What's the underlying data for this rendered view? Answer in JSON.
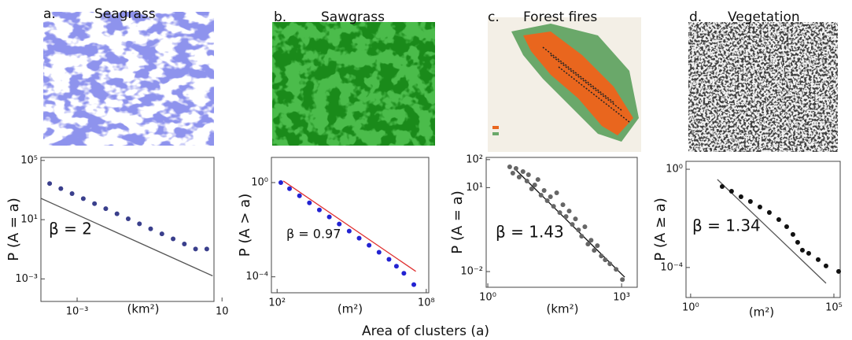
{
  "x_label": "Area of clusters (a)",
  "chart_data": [
    {
      "type": "scatter",
      "letter": "a.",
      "title": "Seagrass",
      "ylabel": "P (A = a)",
      "xlabel": "(km²)",
      "annotation": "β = 2",
      "log_scale": true,
      "color": "#3a3f8c",
      "fit_color": "#555555",
      "xlim": [
        0.0001,
        6
      ],
      "ylim": [
        3e-05,
        160000
      ],
      "xticks": [
        {
          "value": 0.001,
          "label": "10⁻³"
        },
        10
      ],
      "yticks": [
        {
          "value": 100000,
          "label": "10⁵"
        },
        {
          "value": 10,
          "label": "10¹"
        },
        {
          "value": 0.001,
          "label": "10⁻³"
        }
      ],
      "x": [
        0.000174,
        0.000355,
        0.000724,
        0.00148,
        0.00302,
        0.00617,
        0.0126,
        0.0257,
        0.0525,
        0.107,
        0.219,
        0.447,
        0.912,
        1.86,
        3.8
      ],
      "values": [
        2754,
        1259,
        575,
        263,
        120,
        55,
        25.1,
        11.5,
        5.25,
        2.4,
        1.1,
        0.501,
        0.229,
        0.105,
        0.105
      ],
      "fit": {
        "x": [
          0.0001,
          5.5
        ],
        "y": [
          275,
          0.0016
        ]
      }
    },
    {
      "type": "scatter",
      "letter": "b.",
      "title": "Sawgrass",
      "ylabel": "P (A > a)",
      "xlabel": "(m²)",
      "annotation": "β = 0.97",
      "log_scale": true,
      "color": "#2323d2",
      "fit_color": "#e03030",
      "xlim": [
        59,
        126000000
      ],
      "ylim": [
        2.1e-05,
        11.7
      ],
      "xticks": [
        {
          "value": 100,
          "label": "10²"
        },
        {
          "value": 100000000,
          "label": "10⁸"
        }
      ],
      "yticks": [
        {
          "value": 1,
          "label": "10⁰"
        },
        {
          "value": 0.0001,
          "label": "10⁻⁴"
        }
      ],
      "x": [
        141,
        316,
        794,
        1995,
        5012,
        12589,
        31623,
        79433,
        199526,
        501187,
        1258925,
        3162278,
        6309573,
        12589254,
        31622777
      ],
      "values": [
        1,
        0.55,
        0.275,
        0.138,
        0.0692,
        0.0347,
        0.0174,
        0.0087,
        0.00437,
        0.00219,
        0.0011,
        0.00055,
        0.000282,
        0.000141,
        4.68e-05
      ],
      "fit": {
        "x": [
          178,
          38000000
        ],
        "y": [
          1.17,
          0.00017
        ]
      }
    },
    {
      "type": "scatter",
      "letter": "c.",
      "title": "Forest fires",
      "ylabel": "P (A = a)",
      "xlabel": "(km²)",
      "annotation": "β = 1.43",
      "log_scale": true,
      "color": "#666666",
      "fit_color": "#111111",
      "xlim": [
        0.92,
        2239
      ],
      "ylim": [
        0.00275,
        120
      ],
      "xticks": [
        {
          "value": 1,
          "label": "10⁰"
        },
        {
          "value": 1000,
          "label": "10³"
        }
      ],
      "yticks": [
        {
          "value": 100,
          "label": "10²"
        },
        {
          "value": 10,
          "label": "10¹"
        },
        {
          "value": 0.01,
          "label": "10⁻²"
        }
      ],
      "x": [
        3.1,
        3.64,
        4.29,
        5.04,
        6.15,
        7.53,
        8.17,
        9.6,
        11.3,
        13.3,
        15.6,
        18.3,
        21.5,
        25.4,
        29.8,
        35,
        41.1,
        48.3,
        56.8,
        66.8,
        78.5,
        92.3,
        108,
        127,
        150,
        176,
        207,
        243,
        286,
        350,
        429,
        546,
        753,
        1042
      ],
      "values": [
        55.2,
        32.9,
        48.5,
        23.8,
        37.4,
        17.2,
        28.8,
        8.98,
        12.4,
        19.5,
        5.35,
        7.89,
        3.4,
        4.7,
        2.15,
        6.49,
        1.28,
        2.45,
        0.927,
        1.46,
        0.485,
        0.764,
        0.308,
        0.183,
        0.399,
        0.0957,
        0.132,
        0.057,
        0.0841,
        0.0362,
        0.0262,
        0.0189,
        0.012,
        0.00518
      ],
      "fit": {
        "x": [
          4.11,
          1175
        ],
        "y": [
          45.4,
          0.0063
        ]
      }
    },
    {
      "type": "scatter",
      "letter": "d.",
      "title": "Vegetation",
      "ylabel": "P (A ≥ a)",
      "xlabel": "(m²)",
      "annotation": "β = 1.34",
      "log_scale": true,
      "color": "#111111",
      "fit_color": "#555555",
      "xlim": [
        0.69,
        166000
      ],
      "ylim": [
        6e-06,
        2.1
      ],
      "xticks": [
        {
          "value": 1,
          "label": "10⁰"
        },
        {
          "value": 100000,
          "label": "10⁵"
        }
      ],
      "yticks": [
        {
          "value": 1,
          "label": "10⁰"
        },
        {
          "value": 0.0001,
          "label": "10⁻⁴"
        }
      ],
      "x": [
        12.6,
        26.8,
        57.3,
        122,
        262,
        559,
        1194,
        2249,
        3724,
        5445,
        7962,
        13213,
        28248,
        53088,
        146218
      ],
      "values": [
        0.198,
        0.127,
        0.0759,
        0.0488,
        0.0291,
        0.0174,
        0.00895,
        0.00461,
        0.00221,
        0.00106,
        0.000506,
        0.000377,
        0.000209,
        0.000116,
        6.92e-05
      ],
      "fit": {
        "x": [
          8.59,
          53088
        ],
        "y": [
          0.384,
          2.29e-05
        ]
      }
    }
  ]
}
